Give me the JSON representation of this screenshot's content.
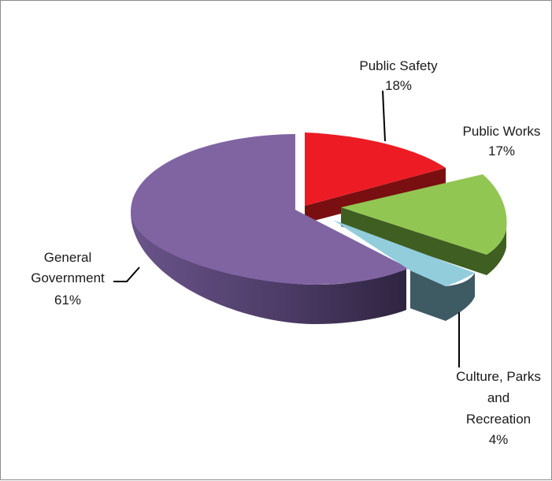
{
  "chart_data": {
    "type": "pie",
    "style": "3d-exploded",
    "title": "",
    "slices": [
      {
        "name": "Public Safety",
        "value": 18,
        "pct_label": "18%",
        "color": "#ed1c24"
      },
      {
        "name": "Public Works",
        "value": 17,
        "pct_label": "17%",
        "color": "#92c653"
      },
      {
        "name": "Culture, Parks and Recreation",
        "value": 4,
        "pct_label": "4%",
        "color": "#92cddc"
      },
      {
        "name": "General Government",
        "value": 61,
        "pct_label": "61%",
        "color": "#8064a2"
      }
    ]
  }
}
